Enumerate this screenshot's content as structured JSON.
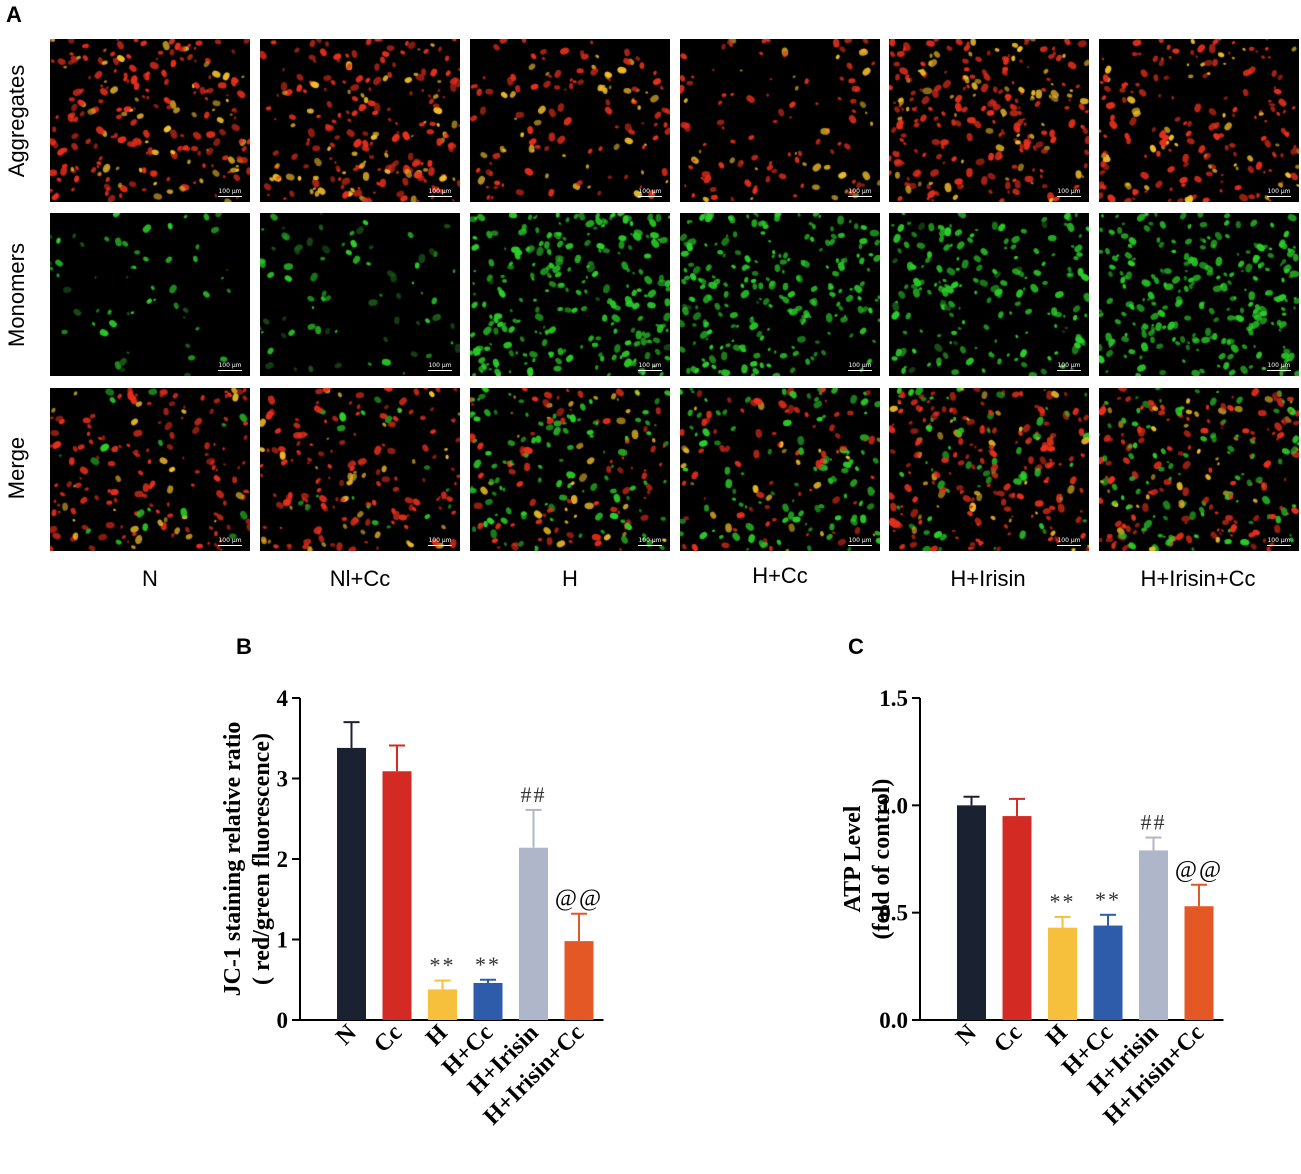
{
  "panel_a": {
    "letter": "A",
    "rows": [
      "Aggregates",
      "Monomers",
      "Merge"
    ],
    "columns": [
      "N",
      "Nl+Cc",
      "H",
      "H+Cc",
      "H+Irisin",
      "H+Irisin+Cc"
    ],
    "scale_bar": "100 μm",
    "image_intensity": {
      "red": [
        0.9,
        0.85,
        0.45,
        0.45,
        1.0,
        0.75
      ],
      "green": [
        0.15,
        0.15,
        0.95,
        0.85,
        0.6,
        0.95
      ]
    },
    "colors": {
      "red": "#e8301c",
      "yellow": "#f4c02a",
      "green": "#2ccf2a"
    }
  },
  "chart_data": [
    {
      "panel": "B",
      "type": "bar",
      "categories": [
        "N",
        "Cc",
        "H",
        "H+Cc",
        "H+Irisin",
        "H+Irisin+Cc"
      ],
      "values": [
        3.38,
        3.09,
        0.38,
        0.46,
        2.14,
        0.98
      ],
      "errors": [
        0.32,
        0.32,
        0.11,
        0.04,
        0.47,
        0.34
      ],
      "annotations": [
        "",
        "",
        "**",
        "**",
        "##",
        "@@"
      ],
      "ylabel": [
        "JC-1 staining relative ratio",
        "( red/green fluorescence)"
      ],
      "ylim": [
        0,
        4
      ],
      "yticks": [
        0,
        1,
        2,
        3,
        4
      ],
      "bar_colors": [
        "#1a2130",
        "#d42a24",
        "#f6bf3c",
        "#2f5caa",
        "#b0b6c9",
        "#e45826"
      ]
    },
    {
      "panel": "C",
      "type": "bar",
      "categories": [
        "N",
        "Cc",
        "H",
        "H+Cc",
        "H+Irisin",
        "H+Irisin+Cc"
      ],
      "values": [
        1.0,
        0.95,
        0.43,
        0.44,
        0.79,
        0.53
      ],
      "errors": [
        0.04,
        0.08,
        0.05,
        0.05,
        0.06,
        0.1
      ],
      "annotations": [
        "",
        "",
        "**",
        "**",
        "##",
        "@@"
      ],
      "ylabel": [
        "ATP Level",
        "(fold of control)"
      ],
      "ylim": [
        0,
        1.5
      ],
      "yticks": [
        "0.0",
        "0.5",
        "1.0",
        "1.5"
      ],
      "bar_colors": [
        "#1a2130",
        "#d42a24",
        "#f6bf3c",
        "#2f5caa",
        "#b0b6c9",
        "#e45826"
      ]
    }
  ]
}
